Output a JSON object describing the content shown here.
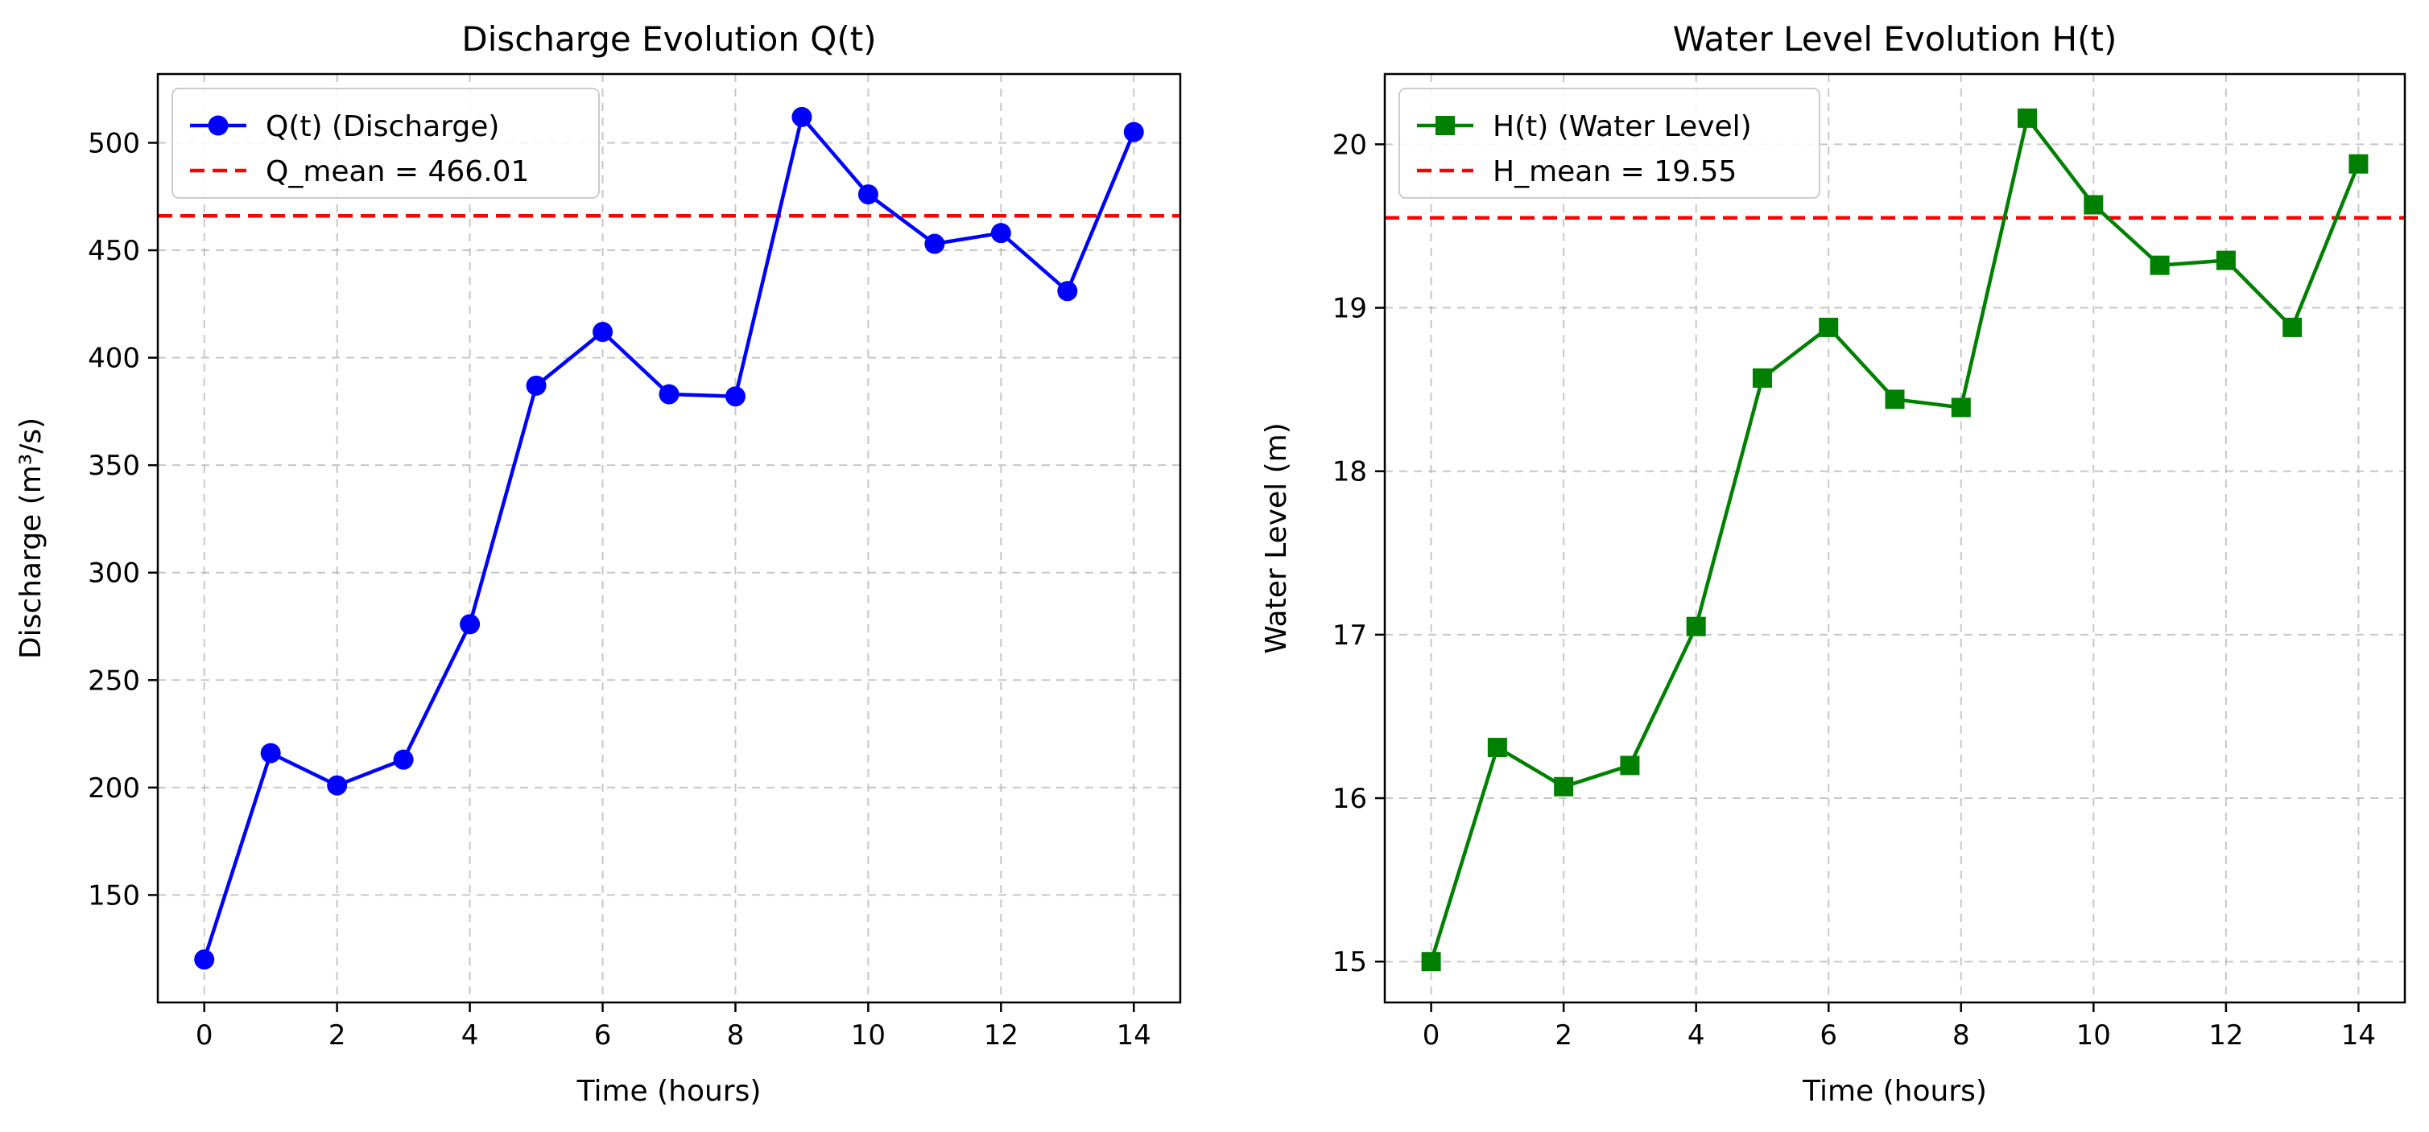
{
  "chart_data": [
    {
      "type": "line",
      "title": "Discharge Evolution Q(t)",
      "xlabel": "Time (hours)",
      "ylabel": "Discharge (m³/s)",
      "xlim": [
        -0.7,
        14.7
      ],
      "ylim": [
        100,
        532
      ],
      "xticks": [
        0,
        2,
        4,
        6,
        8,
        10,
        12,
        14
      ],
      "yticks": [
        150,
        200,
        250,
        300,
        350,
        400,
        450,
        500
      ],
      "grid": true,
      "legend_position": "upper-left",
      "x": [
        0,
        1,
        2,
        3,
        4,
        5,
        6,
        7,
        8,
        9,
        10,
        11,
        12,
        13,
        14
      ],
      "series": [
        {
          "name": "Q(t) (Discharge)",
          "color": "#0000ff",
          "marker": "circle",
          "values": [
            120,
            216,
            201,
            213,
            276,
            387,
            412,
            383,
            382,
            512,
            476,
            453,
            458,
            431,
            505
          ]
        }
      ],
      "hlines": [
        {
          "name": "Q_mean = 466.01",
          "value": 466.01,
          "color": "#ff0000",
          "style": "dashed"
        }
      ]
    },
    {
      "type": "line",
      "title": "Water Level Evolution H(t)",
      "xlabel": "Time (hours)",
      "ylabel": "Water Level (m)",
      "xlim": [
        -0.7,
        14.7
      ],
      "ylim": [
        14.75,
        20.43
      ],
      "xticks": [
        0,
        2,
        4,
        6,
        8,
        10,
        12,
        14
      ],
      "yticks": [
        15,
        16,
        17,
        18,
        19,
        20
      ],
      "grid": true,
      "legend_position": "upper-left",
      "x": [
        0,
        1,
        2,
        3,
        4,
        5,
        6,
        7,
        8,
        9,
        10,
        11,
        12,
        13,
        14
      ],
      "series": [
        {
          "name": "H(t) (Water Level)",
          "color": "#008000",
          "marker": "square",
          "values": [
            15.0,
            16.31,
            16.07,
            16.2,
            17.05,
            18.57,
            18.88,
            18.44,
            18.39,
            20.16,
            19.63,
            19.26,
            19.29,
            18.88,
            19.88
          ]
        }
      ],
      "hlines": [
        {
          "name": "H_mean = 19.55",
          "value": 19.55,
          "color": "#ff0000",
          "style": "dashed"
        }
      ]
    }
  ]
}
